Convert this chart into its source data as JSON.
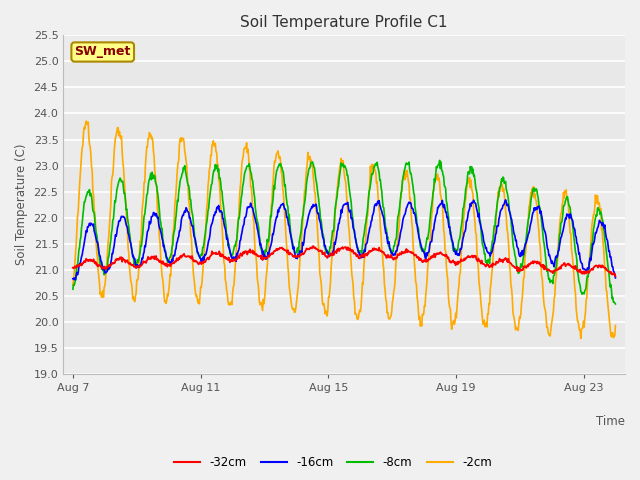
{
  "title": "Soil Temperature Profile C1",
  "ylabel": "Soil Temperature (C)",
  "xlabel": "Time",
  "ylim": [
    19.0,
    25.5
  ],
  "yticks": [
    19.0,
    19.5,
    20.0,
    20.5,
    21.0,
    21.5,
    22.0,
    22.5,
    23.0,
    23.5,
    24.0,
    24.5,
    25.0,
    25.5
  ],
  "xtick_labels": [
    "Aug 7",
    "Aug 11",
    "Aug 15",
    "Aug 19",
    "Aug 23"
  ],
  "xtick_positions": [
    0,
    4,
    8,
    12,
    16
  ],
  "colors": {
    "-32cm": "#ff0000",
    "-16cm": "#0000ff",
    "-8cm": "#00bb00",
    "-2cm": "#ffaa00"
  },
  "fig_facecolor": "#f0f0f0",
  "ax_facecolor": "#e8e8e8",
  "sw_met_box_bg": "#ffff88",
  "sw_met_box_edge": "#aa8800",
  "sw_met_text_color": "#880000",
  "num_days": 17,
  "points_per_day": 48
}
